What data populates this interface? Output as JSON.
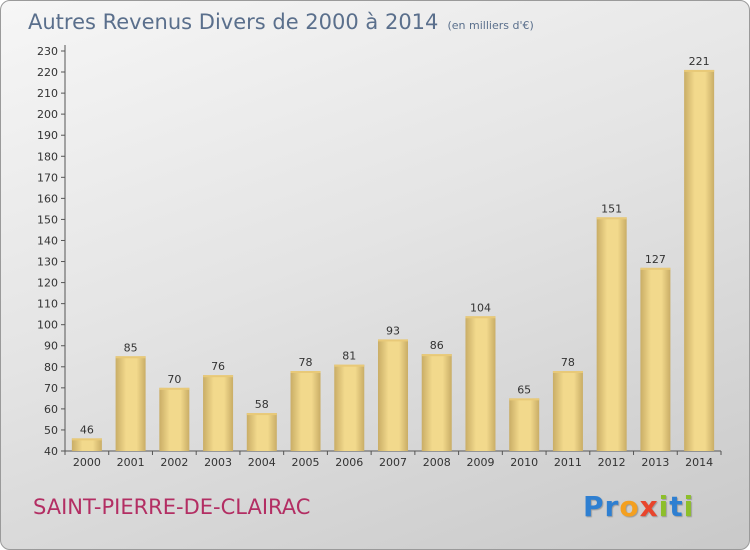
{
  "header": {
    "title": "Autres Revenus Divers de 2000 à 2014",
    "unit": "(en milliers d'€)"
  },
  "footer": {
    "commune": "SAINT-PIERRE-DE-CLAIRAC",
    "logo_letters": [
      "P",
      "r",
      "o",
      "x",
      "i",
      "t",
      "i"
    ],
    "logo_colors": [
      "#2e7fd1",
      "#2e7fd1",
      "#f4a020",
      "#e8452c",
      "#8dbf2a",
      "#2e7fd1",
      "#8dbf2a"
    ]
  },
  "chart_data": {
    "type": "bar",
    "title": "Autres Revenus Divers de 2000 à 2014",
    "subtitle": "(en milliers d'€)",
    "categories": [
      "2000",
      "2001",
      "2002",
      "2003",
      "2004",
      "2005",
      "2006",
      "2007",
      "2008",
      "2009",
      "2010",
      "2011",
      "2012",
      "2013",
      "2014"
    ],
    "values": [
      46,
      85,
      70,
      76,
      58,
      78,
      81,
      93,
      86,
      104,
      65,
      78,
      151,
      127,
      221
    ],
    "ylim": [
      40,
      230
    ],
    "yticks": [
      40,
      50,
      60,
      70,
      80,
      90,
      100,
      110,
      120,
      130,
      140,
      150,
      160,
      170,
      180,
      190,
      200,
      210,
      220,
      230
    ],
    "grid": false,
    "bar_color": "#f2d98c",
    "bar_shadow_color": "#c9ad66"
  }
}
